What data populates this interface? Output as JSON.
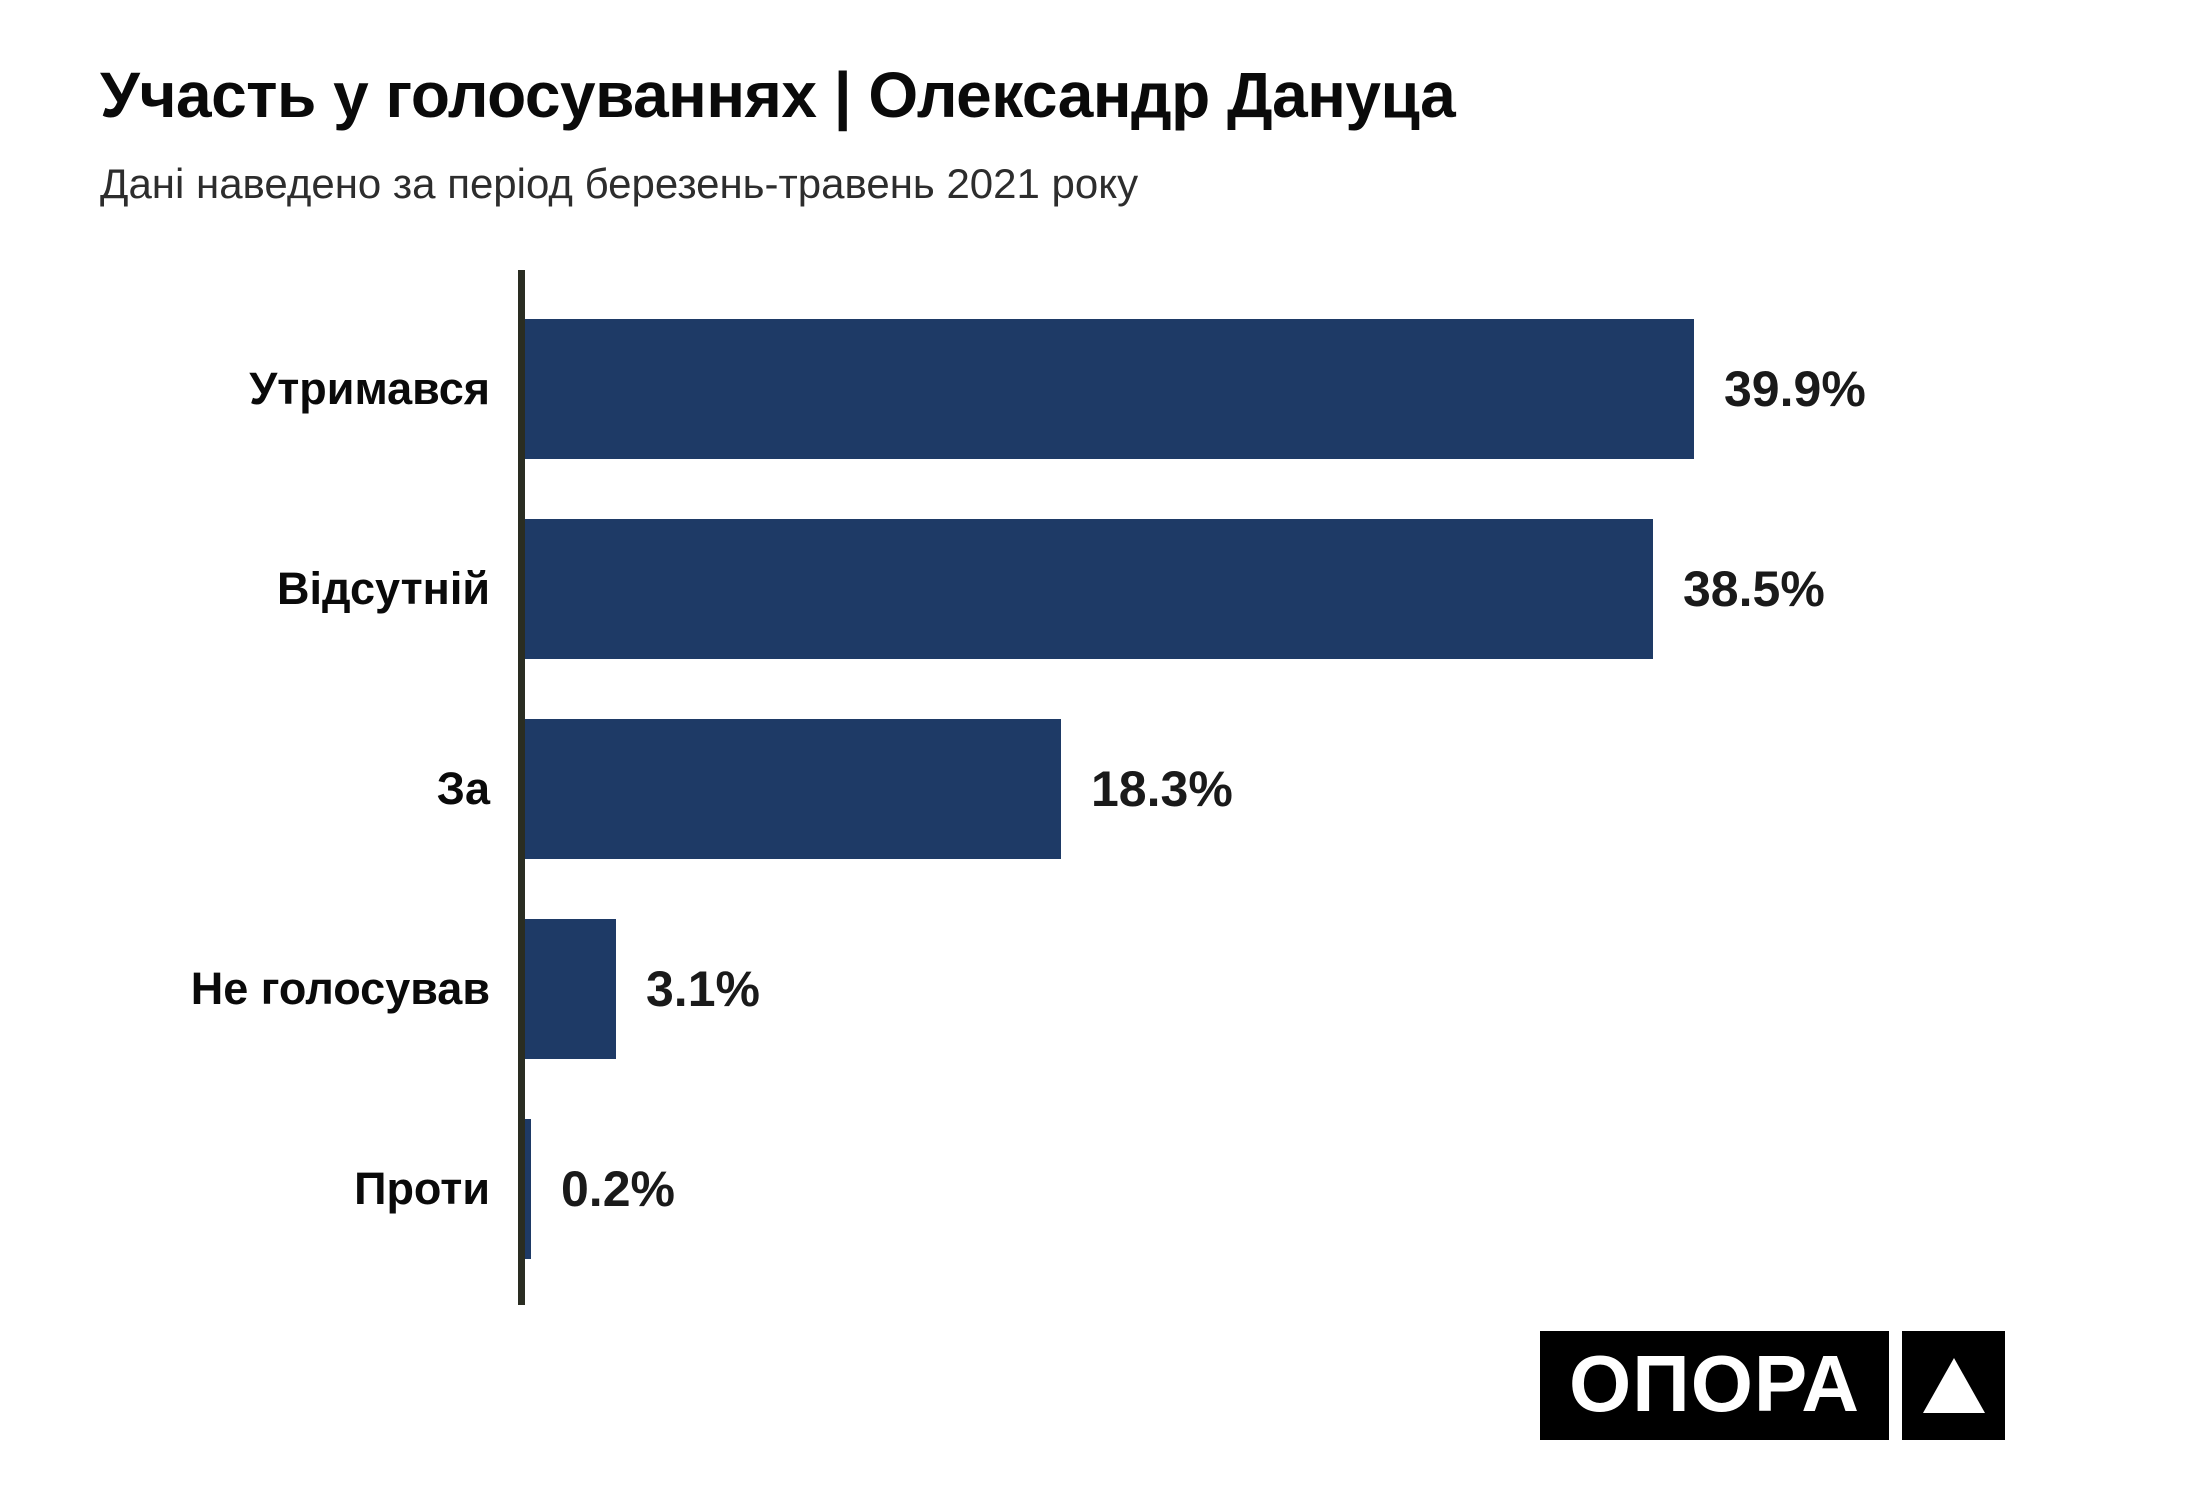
{
  "header": {
    "title": "Участь у голосуваннях | Олександр Дануца",
    "subtitle": "Дані наведено за період березень-травень 2021 року"
  },
  "chart_data": {
    "type": "bar",
    "orientation": "horizontal",
    "title": "Участь у голосуваннях | Олександр Дануца",
    "subtitle": "Дані наведено за період березень-травень 2021 року",
    "categories": [
      "Утримався",
      "Відсутній",
      "За",
      "Не голосував",
      "Проти"
    ],
    "values": [
      39.9,
      38.5,
      18.3,
      3.1,
      0.2
    ],
    "value_labels": [
      "39.9%",
      "38.5%",
      "18.3%",
      "3.1%",
      "0.2%"
    ],
    "xlim": [
      0,
      40
    ],
    "grid": false,
    "legend": false,
    "bar_color": "#1e3a66",
    "axis_color": "#2a2d22",
    "label_color": "#0a0a0a",
    "value_label_position": "right-of-bar"
  },
  "logo": {
    "text": "ОПОРА",
    "icon": "triangle-up-icon",
    "bg_color": "#000000",
    "fg_color": "#ffffff"
  }
}
